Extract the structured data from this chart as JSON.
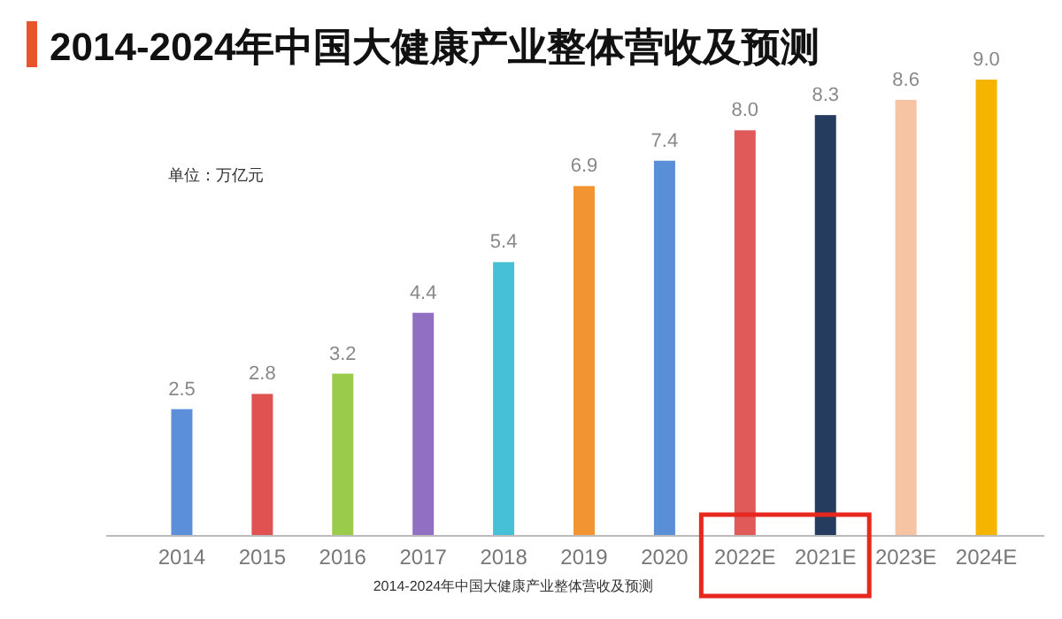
{
  "chart_data": {
    "type": "bar",
    "title": "2014-2024年中国大健康产业整体营收及预测",
    "categories": [
      "2014",
      "2015",
      "2016",
      "2017",
      "2018",
      "2019",
      "2020",
      "2022E",
      "2021E",
      "2023E",
      "2024E"
    ],
    "values": [
      2.5,
      2.8,
      3.2,
      4.4,
      5.4,
      6.9,
      7.4,
      8.0,
      8.3,
      8.6,
      9.0
    ],
    "colors": [
      "#5b8fd9",
      "#e05252",
      "#9acb4a",
      "#9170c4",
      "#45c0d6",
      "#f39433",
      "#5a8fd8",
      "#e05a5a",
      "#253c5e",
      "#f6c4a2",
      "#f4b400"
    ],
    "value_labels": [
      "2.5",
      "2.8",
      "3.2",
      "4.4",
      "5.4",
      "6.9",
      "7.4",
      "8.0",
      "8.3",
      "8.6",
      "9.0"
    ],
    "annotations": [
      "单位：万亿元",
      "2014-2024年中国大健康产业整体营收及预测"
    ]
  }
}
